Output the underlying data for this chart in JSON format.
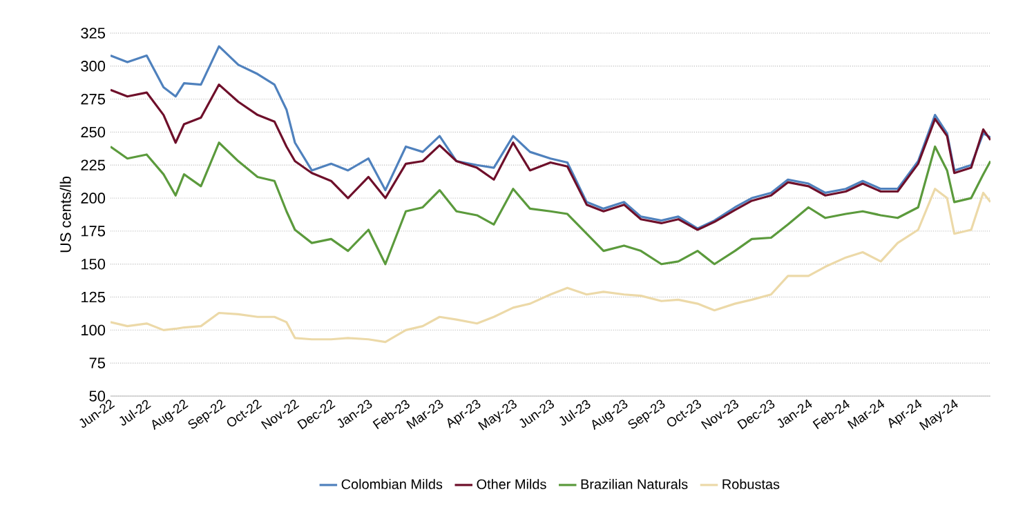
{
  "chart_data": {
    "type": "line",
    "ylabel": "US cents/lb",
    "x": [
      "2022-06-01",
      "2022-06-15",
      "2022-07-01",
      "2022-07-15",
      "2022-07-25",
      "2022-08-01",
      "2022-08-15",
      "2022-08-30",
      "2022-09-15",
      "2022-10-01",
      "2022-10-15",
      "2022-10-25",
      "2022-11-01",
      "2022-11-15",
      "2022-12-01",
      "2022-12-15",
      "2023-01-01",
      "2023-01-15",
      "2023-02-01",
      "2023-02-15",
      "2023-03-01",
      "2023-03-15",
      "2023-04-01",
      "2023-04-15",
      "2023-05-01",
      "2023-05-15",
      "2023-06-01",
      "2023-06-15",
      "2023-07-01",
      "2023-07-15",
      "2023-08-01",
      "2023-08-15",
      "2023-09-01",
      "2023-09-15",
      "2023-10-01",
      "2023-10-15",
      "2023-11-01",
      "2023-11-15",
      "2023-12-01",
      "2023-12-15",
      "2024-01-01",
      "2024-01-15",
      "2024-02-01",
      "2024-02-15",
      "2024-03-01",
      "2024-03-15",
      "2024-04-01",
      "2024-04-15",
      "2024-04-25",
      "2024-05-01",
      "2024-05-15",
      "2024-05-25",
      "2024-05-31"
    ],
    "series": [
      {
        "name": "Colombian Milds",
        "color": "#4f81bd",
        "values": [
          308,
          303,
          308,
          284,
          277,
          287,
          286,
          315,
          301,
          294,
          286,
          267,
          242,
          221,
          226,
          221,
          230,
          206,
          239,
          235,
          247,
          228,
          225,
          223,
          247,
          235,
          230,
          227,
          197,
          192,
          197,
          186,
          183,
          186,
          177,
          183,
          193,
          200,
          204,
          214,
          211,
          204,
          207,
          213,
          207,
          207,
          228,
          263,
          249,
          221,
          225,
          249,
          246
        ]
      },
      {
        "name": "Other Milds",
        "color": "#6e0f2a",
        "values": [
          282,
          277,
          280,
          263,
          242,
          256,
          261,
          286,
          273,
          263,
          258,
          239,
          228,
          219,
          213,
          200,
          216,
          200,
          226,
          228,
          240,
          228,
          223,
          214,
          242,
          221,
          227,
          224,
          195,
          190,
          195,
          184,
          181,
          184,
          176,
          182,
          191,
          198,
          202,
          212,
          209,
          202,
          205,
          211,
          205,
          205,
          226,
          260,
          247,
          219,
          223,
          252,
          244
        ]
      },
      {
        "name": "Brazilian Naturals",
        "color": "#5b9a3c",
        "values": [
          239,
          230,
          233,
          218,
          202,
          218,
          209,
          242,
          228,
          216,
          213,
          190,
          176,
          166,
          169,
          160,
          176,
          150,
          190,
          193,
          206,
          190,
          187,
          180,
          207,
          192,
          190,
          188,
          173,
          160,
          164,
          160,
          150,
          152,
          160,
          150,
          160,
          169,
          170,
          180,
          193,
          185,
          188,
          190,
          187,
          185,
          193,
          239,
          221,
          197,
          200,
          218,
          228
        ]
      },
      {
        "name": "Robustas",
        "color": "#ecd9a8",
        "values": [
          106,
          103,
          105,
          100,
          101,
          102,
          103,
          113,
          112,
          110,
          110,
          106,
          94,
          93,
          93,
          94,
          93,
          91,
          100,
          103,
          110,
          108,
          105,
          110,
          117,
          120,
          127,
          132,
          127,
          129,
          127,
          126,
          122,
          123,
          120,
          115,
          120,
          123,
          127,
          141,
          141,
          148,
          155,
          159,
          152,
          166,
          176,
          207,
          200,
          173,
          176,
          204,
          197
        ]
      }
    ],
    "xlim": [
      "2022-06-01",
      "2024-05-31"
    ],
    "xticks": [
      {
        "value": "2022-06-01",
        "label": "Jun-22"
      },
      {
        "value": "2022-07-01",
        "label": "Jul-22"
      },
      {
        "value": "2022-08-01",
        "label": "Aug-22"
      },
      {
        "value": "2022-09-01",
        "label": "Sep-22"
      },
      {
        "value": "2022-10-01",
        "label": "Oct-22"
      },
      {
        "value": "2022-11-01",
        "label": "Nov-22"
      },
      {
        "value": "2022-12-01",
        "label": "Dec-22"
      },
      {
        "value": "2023-01-01",
        "label": "Jan-23"
      },
      {
        "value": "2023-02-01",
        "label": "Feb-23"
      },
      {
        "value": "2023-03-01",
        "label": "Mar-23"
      },
      {
        "value": "2023-04-01",
        "label": "Apr-23"
      },
      {
        "value": "2023-05-01",
        "label": "May-23"
      },
      {
        "value": "2023-06-01",
        "label": "Jun-23"
      },
      {
        "value": "2023-07-01",
        "label": "Jul-23"
      },
      {
        "value": "2023-08-01",
        "label": "Aug-23"
      },
      {
        "value": "2023-09-01",
        "label": "Sep-23"
      },
      {
        "value": "2023-10-01",
        "label": "Oct-23"
      },
      {
        "value": "2023-11-01",
        "label": "Nov-23"
      },
      {
        "value": "2023-12-01",
        "label": "Dec-23"
      },
      {
        "value": "2024-01-01",
        "label": "Jan-24"
      },
      {
        "value": "2024-02-01",
        "label": "Feb-24"
      },
      {
        "value": "2024-03-01",
        "label": "Mar-24"
      },
      {
        "value": "2024-04-01",
        "label": "Apr-24"
      },
      {
        "value": "2024-05-01",
        "label": "May-24"
      }
    ],
    "ylim": [
      50,
      325
    ],
    "yticks": [
      50,
      75,
      100,
      125,
      150,
      175,
      200,
      225,
      250,
      275,
      300,
      325
    ],
    "grid": "y",
    "legend": "bottom",
    "marker": "none",
    "line_style": "solid"
  }
}
